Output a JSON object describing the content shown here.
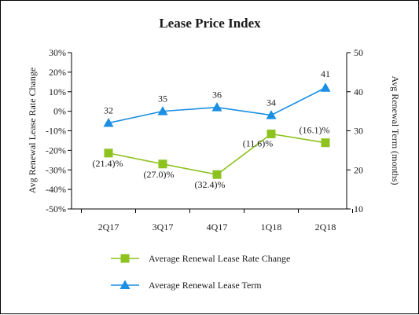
{
  "chart_data": {
    "type": "line",
    "title": "Lease Price Index",
    "categories": [
      "2Q17",
      "3Q17",
      "4Q17",
      "1Q18",
      "2Q18"
    ],
    "y_left": {
      "label": "Avg Renewal Lease Rate Change",
      "range": [
        -50,
        30
      ],
      "ticks": [
        30,
        20,
        10,
        0,
        -10,
        -20,
        -30,
        -40,
        -50
      ],
      "tick_labels": [
        "30%",
        "20%",
        "10%",
        "0%",
        "-10%",
        "-20%",
        "-30%",
        "-40%",
        "-50%"
      ]
    },
    "y_right": {
      "label": "Avg Renewal Term (months)",
      "range": [
        10,
        50
      ],
      "ticks": [
        50,
        40,
        30,
        20,
        10
      ],
      "tick_labels": [
        "50",
        "40",
        "30",
        "20",
        "10"
      ]
    },
    "grid": false,
    "legend_position": "bottom",
    "series": [
      {
        "name": "Average Renewal Lease Rate Change",
        "axis": "left",
        "color": "#8dc21f",
        "marker": "square",
        "values": [
          -21.4,
          -27.0,
          -32.4,
          -11.6,
          -16.1
        ],
        "labels": [
          "(21.4)%",
          "(27.0)%",
          "(32.4)%",
          "(11.6)%",
          "(16.1)%"
        ]
      },
      {
        "name": "Average Renewal Lease Term",
        "axis": "right",
        "color": "#1a8fe3",
        "marker": "triangle",
        "values": [
          32,
          35,
          36,
          34,
          41
        ],
        "labels": [
          "32",
          "35",
          "36",
          "34",
          "41"
        ]
      }
    ]
  }
}
